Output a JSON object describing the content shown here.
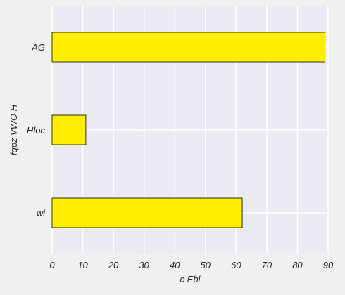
{
  "chart_data": {
    "type": "bar",
    "orientation": "horizontal",
    "categories": [
      "AG",
      "Hloc",
      "wi"
    ],
    "values": [
      89,
      11,
      62
    ],
    "xlabel": "c Ebl",
    "ylabel": "fqpz VWO H",
    "xlim": [
      0,
      90
    ],
    "xticks": [
      0,
      10,
      20,
      30,
      40,
      50,
      60,
      70,
      80,
      90
    ],
    "grid": true,
    "colors": {
      "bar": "#ffee00",
      "bar_edge": "#000000",
      "plot_bg": "#eaeaf2",
      "grid": "#ffffff",
      "page_bg": "#f0f0f0"
    }
  }
}
